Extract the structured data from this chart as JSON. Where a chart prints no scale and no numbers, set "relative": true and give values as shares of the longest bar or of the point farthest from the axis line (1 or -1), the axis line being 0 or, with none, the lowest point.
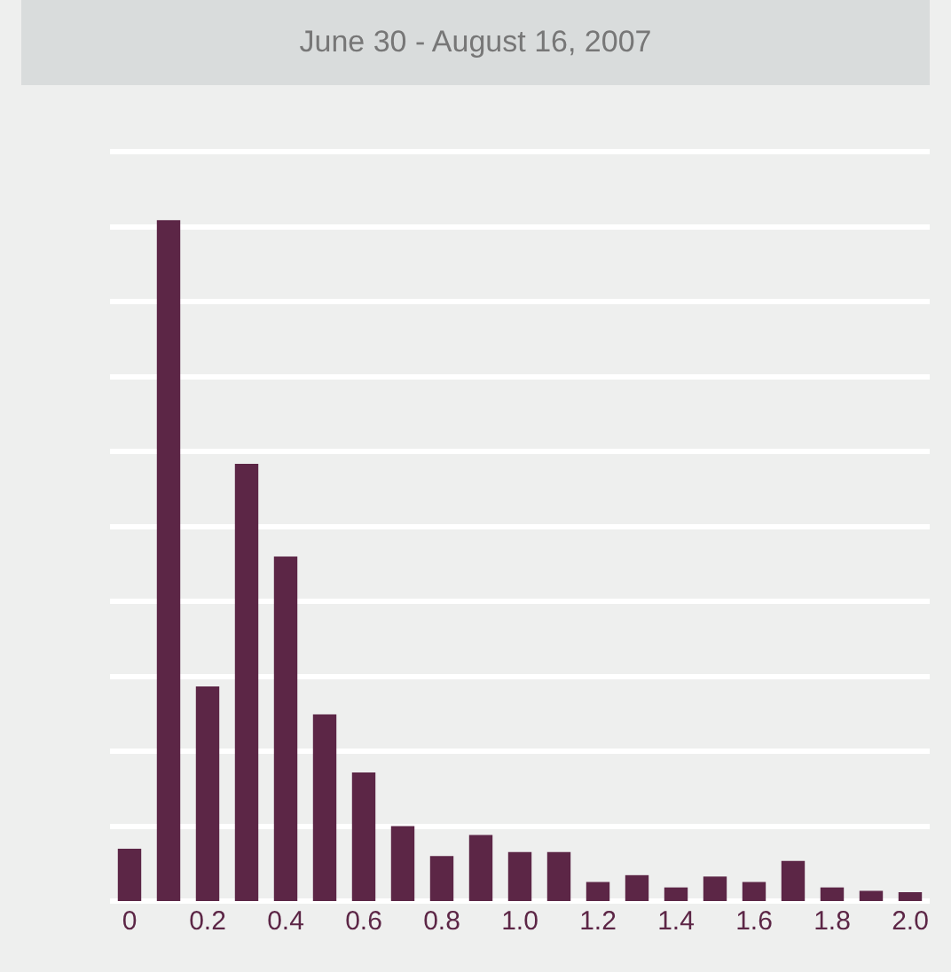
{
  "chart_data": {
    "type": "bar",
    "title": "June 30 - August 16, 2007",
    "categories": [
      "0",
      null,
      "0.2",
      null,
      "0.4",
      null,
      "0.6",
      null,
      "0.8",
      null,
      "1.0",
      null,
      "1.2",
      null,
      "1.4",
      null,
      "1.6",
      null,
      "1.8",
      null,
      "2.0"
    ],
    "values": [
      0.077,
      1,
      0.315,
      0.642,
      0.506,
      0.274,
      0.189,
      0.11,
      0.066,
      0.097,
      0.072,
      0.072,
      0.028,
      0.038,
      0.02,
      0.036,
      0.028,
      0.059,
      0.02,
      0.015,
      0.013
    ],
    "color": "#5c2646",
    "relative": true,
    "grid": "y"
  }
}
